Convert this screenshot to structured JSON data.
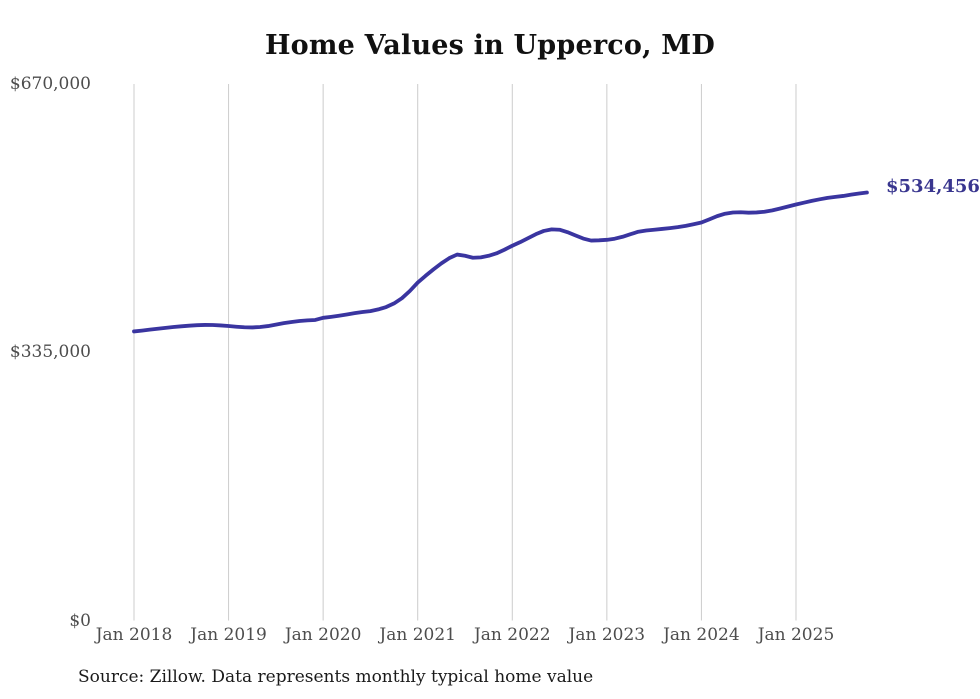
{
  "chart": {
    "title": "Home Values in Upperco, MD",
    "latest_value_label": "$534,456",
    "source": "Source: Zillow. Data represents monthly typical home value",
    "colors": {
      "line": "#3a35a0",
      "latest_label": "#39368f",
      "grid": "#cccccc",
      "axis_text": "#4d4d4d"
    }
  },
  "chart_data": {
    "type": "line",
    "title": "Home Values in Upperco, MD",
    "xlabel": "",
    "ylabel": "",
    "ylim": [
      0,
      670000
    ],
    "y_tick_values": [
      0,
      335000,
      670000
    ],
    "y_tick_labels": [
      "$0",
      "$335,000",
      "$670,000"
    ],
    "x_tick_labels": [
      "Jan 2018",
      "Jan 2019",
      "Jan 2020",
      "Jan 2021",
      "Jan 2022",
      "Jan 2023",
      "Jan 2024",
      "Jan 2025"
    ],
    "grid": "vertical-only",
    "legend": "none",
    "annotation": {
      "text": "$534,456",
      "at": "last-point"
    },
    "latest_value": 534456,
    "series": [
      {
        "name": "Monthly typical home value",
        "start_month": "2018-01",
        "end_month": "2025-10",
        "values": [
          361000,
          362000,
          363200,
          364400,
          365500,
          366500,
          367400,
          368200,
          368800,
          369100,
          369000,
          368500,
          367800,
          366900,
          366200,
          366000,
          366500,
          367700,
          369500,
          371300,
          372800,
          374000,
          374800,
          375300,
          378000,
          379200,
          380600,
          382200,
          383800,
          385200,
          386400,
          388500,
          391500,
          396000,
          402500,
          411500,
          422000,
          430500,
          438500,
          446000,
          452500,
          457000,
          455500,
          453000,
          453500,
          455500,
          458500,
          463000,
          468000,
          472500,
          477500,
          482500,
          486500,
          488500,
          488000,
          485000,
          481000,
          477000,
          474500,
          474800,
          475400,
          476800,
          479200,
          482500,
          485500,
          487000,
          488000,
          489000,
          490000,
          491200,
          492800,
          494800,
          497000,
          501000,
          505000,
          508000,
          509500,
          509800,
          509300,
          509600,
          510500,
          512200,
          514500,
          517000,
          519500,
          521800,
          524000,
          526000,
          527800,
          529000,
          530200,
          531800,
          533200,
          534456
        ]
      }
    ]
  }
}
